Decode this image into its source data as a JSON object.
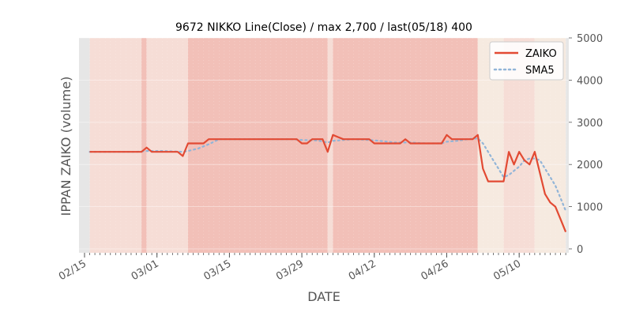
{
  "chart_data": {
    "type": "line",
    "title": "9672 NIKKO Line(Close) / max 2,700 / last(05/18) 400",
    "xlabel": "DATE",
    "ylabel": "IPPAN ZAIKO (volume)",
    "ylim": [
      0,
      5000
    ],
    "y_ticks": [
      "0",
      "1000",
      "2000",
      "3000",
      "4000",
      "5000"
    ],
    "x_start": "02/15",
    "x_end": "05/18",
    "x_ticks": [
      {
        "label": "02/15",
        "day": 0
      },
      {
        "label": "03/01",
        "day": 14
      },
      {
        "label": "03/15",
        "day": 28
      },
      {
        "label": "03/29",
        "day": 42
      },
      {
        "label": "04/12",
        "day": 56
      },
      {
        "label": "04/26",
        "day": 70
      },
      {
        "label": "05/10",
        "day": 84
      }
    ],
    "legend_position": "top-right",
    "colors": {
      "series1": "#E24A33",
      "series2": "#92B5D8",
      "band_dark": "#F2C0B8",
      "band_light": "#F6DDD6",
      "band_pale": "#F6EAE0",
      "band_grey": "#E6E6E6"
    },
    "series": [
      {
        "name": "ZAIKO",
        "style": "solid",
        "values": [
          [
            1,
            2300
          ],
          [
            2,
            2300
          ],
          [
            3,
            2300
          ],
          [
            4,
            2300
          ],
          [
            5,
            2300
          ],
          [
            6,
            2300
          ],
          [
            7,
            2300
          ],
          [
            8,
            2300
          ],
          [
            9,
            2300
          ],
          [
            10,
            2300
          ],
          [
            11,
            2300
          ],
          [
            12,
            2400
          ],
          [
            13,
            2300
          ],
          [
            14,
            2300
          ],
          [
            15,
            2300
          ],
          [
            16,
            2300
          ],
          [
            17,
            2300
          ],
          [
            18,
            2300
          ],
          [
            19,
            2200
          ],
          [
            20,
            2500
          ],
          [
            21,
            2500
          ],
          [
            22,
            2500
          ],
          [
            23,
            2500
          ],
          [
            24,
            2600
          ],
          [
            25,
            2600
          ],
          [
            26,
            2600
          ],
          [
            27,
            2600
          ],
          [
            28,
            2600
          ],
          [
            29,
            2600
          ],
          [
            30,
            2600
          ],
          [
            31,
            2600
          ],
          [
            32,
            2600
          ],
          [
            33,
            2600
          ],
          [
            34,
            2600
          ],
          [
            35,
            2600
          ],
          [
            36,
            2600
          ],
          [
            37,
            2600
          ],
          [
            38,
            2600
          ],
          [
            39,
            2600
          ],
          [
            40,
            2600
          ],
          [
            41,
            2600
          ],
          [
            42,
            2500
          ],
          [
            43,
            2500
          ],
          [
            44,
            2600
          ],
          [
            45,
            2600
          ],
          [
            46,
            2600
          ],
          [
            47,
            2300
          ],
          [
            48,
            2700
          ],
          [
            49,
            2650
          ],
          [
            50,
            2600
          ],
          [
            51,
            2600
          ],
          [
            52,
            2600
          ],
          [
            53,
            2600
          ],
          [
            54,
            2600
          ],
          [
            55,
            2600
          ],
          [
            56,
            2500
          ],
          [
            57,
            2500
          ],
          [
            58,
            2500
          ],
          [
            59,
            2500
          ],
          [
            60,
            2500
          ],
          [
            61,
            2500
          ],
          [
            62,
            2600
          ],
          [
            63,
            2500
          ],
          [
            64,
            2500
          ],
          [
            65,
            2500
          ],
          [
            66,
            2500
          ],
          [
            67,
            2500
          ],
          [
            68,
            2500
          ],
          [
            69,
            2500
          ],
          [
            70,
            2700
          ],
          [
            71,
            2600
          ],
          [
            72,
            2600
          ],
          [
            73,
            2600
          ],
          [
            74,
            2600
          ],
          [
            75,
            2600
          ],
          [
            76,
            2700
          ],
          [
            77,
            1900
          ],
          [
            78,
            1600
          ],
          [
            79,
            1600
          ],
          [
            80,
            1600
          ],
          [
            81,
            1600
          ],
          [
            82,
            2300
          ],
          [
            83,
            2000
          ],
          [
            84,
            2300
          ],
          [
            85,
            2100
          ],
          [
            86,
            2000
          ],
          [
            87,
            2300
          ],
          [
            88,
            1800
          ],
          [
            89,
            1300
          ],
          [
            90,
            1100
          ],
          [
            91,
            1000
          ],
          [
            92,
            700
          ],
          [
            93,
            400
          ]
        ]
      },
      {
        "name": "SMA5",
        "style": "dotted",
        "values": [
          [
            1,
            2300
          ],
          [
            5,
            2300
          ],
          [
            10,
            2300
          ],
          [
            12,
            2320
          ],
          [
            15,
            2320
          ],
          [
            19,
            2300
          ],
          [
            20,
            2320
          ],
          [
            22,
            2380
          ],
          [
            24,
            2480
          ],
          [
            25,
            2540
          ],
          [
            26,
            2600
          ],
          [
            30,
            2600
          ],
          [
            35,
            2600
          ],
          [
            40,
            2600
          ],
          [
            42,
            2580
          ],
          [
            45,
            2570
          ],
          [
            47,
            2520
          ],
          [
            48,
            2560
          ],
          [
            50,
            2580
          ],
          [
            52,
            2600
          ],
          [
            55,
            2580
          ],
          [
            57,
            2560
          ],
          [
            60,
            2520
          ],
          [
            63,
            2520
          ],
          [
            66,
            2500
          ],
          [
            69,
            2500
          ],
          [
            70,
            2540
          ],
          [
            72,
            2560
          ],
          [
            74,
            2600
          ],
          [
            76,
            2620
          ],
          [
            77,
            2500
          ],
          [
            78,
            2300
          ],
          [
            79,
            2100
          ],
          [
            80,
            1900
          ],
          [
            81,
            1700
          ],
          [
            82,
            1750
          ],
          [
            83,
            1850
          ],
          [
            84,
            1950
          ],
          [
            85,
            2100
          ],
          [
            86,
            2140
          ],
          [
            87,
            2140
          ],
          [
            88,
            2100
          ],
          [
            89,
            1900
          ],
          [
            90,
            1700
          ],
          [
            91,
            1500
          ],
          [
            92,
            1200
          ],
          [
            93,
            900
          ]
        ]
      }
    ],
    "bands": [
      {
        "start": 1,
        "end": 11,
        "tone": "light"
      },
      {
        "start": 11,
        "end": 12,
        "tone": "dark"
      },
      {
        "start": 12,
        "end": 20,
        "tone": "light"
      },
      {
        "start": 20,
        "end": 47,
        "tone": "dark"
      },
      {
        "start": 47,
        "end": 48,
        "tone": "light"
      },
      {
        "start": 48,
        "end": 76,
        "tone": "dark"
      },
      {
        "start": 76,
        "end": 81,
        "tone": "pale"
      },
      {
        "start": 81,
        "end": 87,
        "tone": "light"
      },
      {
        "start": 87,
        "end": 93,
        "tone": "pale"
      }
    ]
  }
}
